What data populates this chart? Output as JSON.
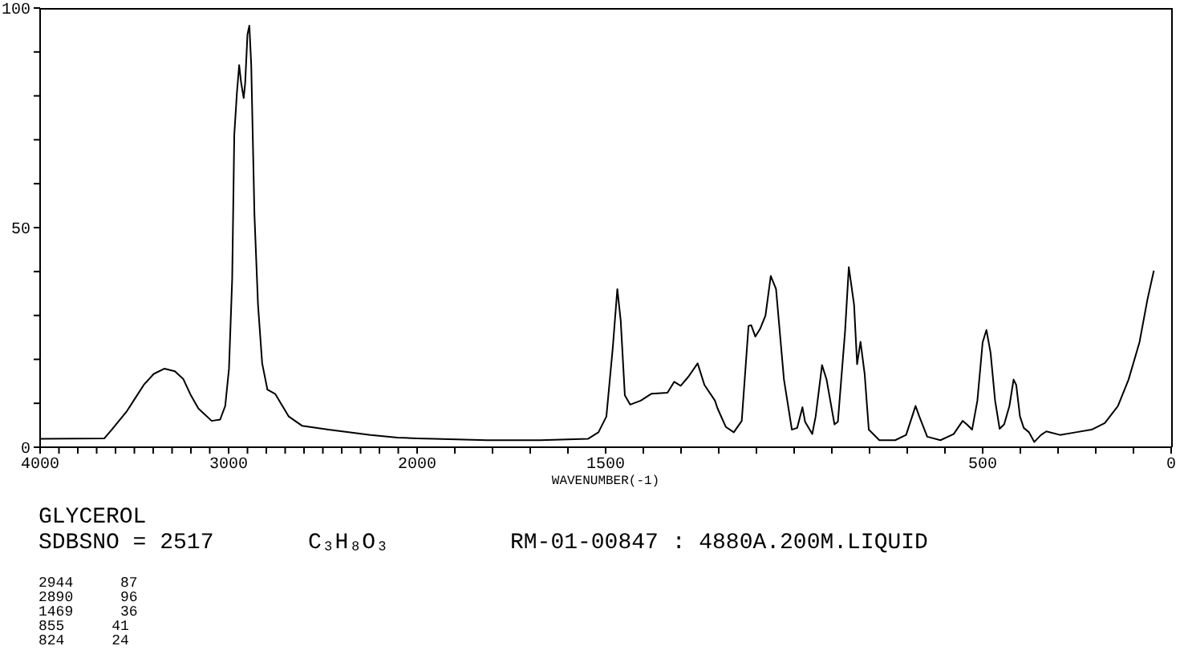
{
  "chart_data": [
    {
      "type": "line",
      "title": "GLYCEROL",
      "annotations": [
        "SDBSNO = 2517",
        "C₃H₈O₃",
        "RM-01-00847 : 4880A.200M.LIQUID",
        "2944 87",
        "2890 96",
        "1469 36",
        "855 41",
        "824 24"
      ],
      "x": [
        4000,
        3660,
        3620,
        3540,
        3495,
        3450,
        3397,
        3340,
        3285,
        3240,
        3200,
        3160,
        3090,
        3045,
        3018,
        2998,
        2981,
        2970,
        2956,
        2944,
        2934,
        2920,
        2912,
        2900,
        2890,
        2880,
        2863,
        2844,
        2822,
        2794,
        2752,
        2723,
        2681,
        2611,
        2471,
        2247,
        2104,
        2000
      ],
      "values": [
        1.9,
        2.0,
        4.0,
        8.2,
        11.2,
        14.2,
        16.7,
        17.9,
        17.3,
        15.5,
        11.8,
        8.8,
        6.0,
        6.3,
        9.4,
        17.9,
        38.4,
        71.1,
        80.7,
        87,
        83.1,
        79.5,
        83,
        94,
        96,
        87,
        52.9,
        32.4,
        19.1,
        13.1,
        12.1,
        10.0,
        7.0,
        4.9,
        4.0,
        2.8,
        2.2,
        2.0
      ],
      "color": "#000000",
      "xlim": [
        4000,
        2000
      ],
      "xticks": [
        4000,
        {
          "value": 3900,
          "label": null
        },
        {
          "value": 3800,
          "label": null
        },
        {
          "value": 3700,
          "label": null
        },
        {
          "value": 3600,
          "label": null
        },
        {
          "value": 3500,
          "label": null
        },
        {
          "value": 3400,
          "label": null
        },
        {
          "value": 3300,
          "label": null
        },
        {
          "value": 3200,
          "label": null
        },
        {
          "value": 3100,
          "label": null
        },
        3000,
        {
          "value": 2900,
          "label": null
        },
        {
          "value": 2800,
          "label": null
        },
        {
          "value": 2700,
          "label": null
        },
        {
          "value": 2600,
          "label": null
        },
        {
          "value": 2500,
          "label": null
        },
        {
          "value": 2400,
          "label": null
        },
        {
          "value": 2300,
          "label": null
        },
        {
          "value": 2200,
          "label": null
        },
        {
          "value": 2100,
          "label": null
        }
      ],
      "ylim": [
        0,
        100
      ],
      "yticks": [
        0,
        {
          "value": 10,
          "label": null
        },
        {
          "value": 20,
          "label": null
        },
        {
          "value": 30,
          "label": null
        },
        {
          "value": 40,
          "label": null
        },
        50,
        {
          "value": 60,
          "label": null
        },
        {
          "value": 70,
          "label": null
        },
        {
          "value": 80,
          "label": null
        },
        {
          "value": 90,
          "label": null
        },
        100
      ]
    },
    {
      "type": "line",
      "xlabel": "WAVENUMBER(-1)",
      "x": [
        2000,
        1955,
        1814,
        1674,
        1547,
        1519,
        1498,
        1481,
        1469,
        1460,
        1449,
        1435,
        1407,
        1378,
        1336,
        1318,
        1301,
        1280,
        1256,
        1238,
        1210,
        1203,
        1181,
        1160,
        1139,
        1121,
        1114,
        1103,
        1090,
        1076,
        1062,
        1048,
        1027,
        1006,
        992,
        978,
        971,
        952,
        943,
        926,
        914,
        893,
        884,
        865,
        855,
        841,
        833,
        824,
        813,
        802,
        774,
        732,
        703,
        687,
        678,
        668,
        647,
        612,
        577,
        553,
        542,
        528,
        514,
        500,
        490,
        479,
        467,
        455,
        443,
        429,
        418,
        411,
        401,
        391,
        377,
        363,
        345,
        331,
        295,
        253,
        211,
        176,
        141,
        113,
        84,
        63,
        46
      ],
      "values": [
        2.0,
        1.9,
        1.6,
        1.6,
        1.9,
        3.4,
        7.0,
        22.7,
        36,
        28.8,
        11.8,
        9.7,
        10.6,
        12.2,
        12.4,
        14.9,
        14.0,
        16.1,
        19.1,
        14.2,
        10.6,
        8.8,
        4.6,
        3.4,
        6.0,
        27.6,
        27.8,
        25.2,
        27.0,
        30.0,
        39.0,
        36.0,
        15.4,
        4.0,
        4.4,
        9.1,
        5.8,
        3.0,
        7.0,
        18.7,
        15.4,
        5.2,
        5.8,
        26.3,
        41,
        32.4,
        18.9,
        24,
        16.7,
        4.0,
        1.6,
        1.6,
        2.8,
        7.0,
        9.4,
        7.0,
        2.4,
        1.6,
        3.0,
        6.0,
        5.2,
        4.0,
        10.6,
        23.9,
        26.7,
        21.5,
        10.6,
        4.2,
        5.2,
        9.4,
        15.4,
        14.2,
        7.0,
        4.4,
        3.4,
        1.2,
        2.8,
        3.6,
        2.8,
        3.4,
        4.0,
        5.5,
        9.4,
        15.4,
        23.9,
        33.6,
        40.2
      ],
      "color": "#000000",
      "xlim": [
        2000,
        0
      ],
      "xticks": [
        2000,
        {
          "value": 1900,
          "label": null
        },
        {
          "value": 1800,
          "label": null
        },
        {
          "value": 1700,
          "label": null
        },
        {
          "value": 1600,
          "label": null
        },
        1500,
        {
          "value": 1400,
          "label": null
        },
        {
          "value": 1300,
          "label": null
        },
        {
          "value": 1200,
          "label": null
        },
        {
          "value": 1100,
          "label": null
        },
        {
          "value": 1000,
          "label": null
        },
        {
          "value": 900,
          "label": null
        },
        {
          "value": 800,
          "label": null
        },
        {
          "value": 700,
          "label": null
        },
        {
          "value": 600,
          "label": null
        },
        500,
        {
          "value": 400,
          "label": null
        },
        {
          "value": 300,
          "label": null
        },
        {
          "value": 200,
          "label": null
        },
        {
          "value": 100,
          "label": null
        },
        0
      ],
      "ylim": [
        0,
        100
      ],
      "tick_labels": "x"
    }
  ]
}
